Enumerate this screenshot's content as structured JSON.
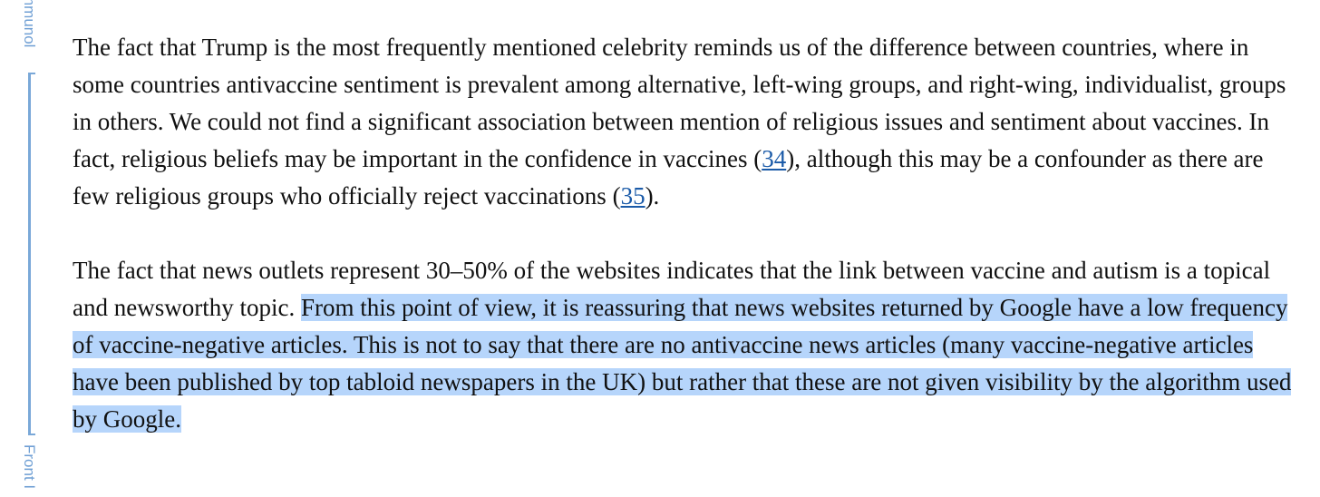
{
  "sidebar": {
    "top_label": "mmunol",
    "bottom_label": "Front I"
  },
  "article": {
    "paragraph1": {
      "before_ref1": "The fact that Trump is the most frequently mentioned celebrity reminds us of the difference between countries, where in some countries antivaccine sentiment is prevalent among alternative, left-wing groups, and right-wing, individualist, groups in others. We could not find a significant association between mention of religious issues and sentiment about vaccines. In fact, religious beliefs may be important in the confidence in vaccines (",
      "ref1": "34",
      "between_refs": "), although this may be a confounder as there are few religious groups who officially reject vaccinations (",
      "ref2": "35",
      "after_ref2": ")."
    },
    "paragraph2": {
      "unselected": "The fact that news outlets represent 30–50% of the websites indicates that the link between vaccine and autism is a topical and newsworthy topic. ",
      "selected": "From this point of view, it is reassuring that news websites returned by Google have a low frequency of vaccine-negative articles. This is not to say that there are no antivaccine news articles (many vaccine-negative articles have been published by top tabloid newspapers in the UK) but rather that these are not given visibility by the algorithm used by Google."
    }
  },
  "colors": {
    "selection": "#b6d5fb",
    "link": "#1a5aa8",
    "sidebar_accent": "#7aa8d8"
  }
}
